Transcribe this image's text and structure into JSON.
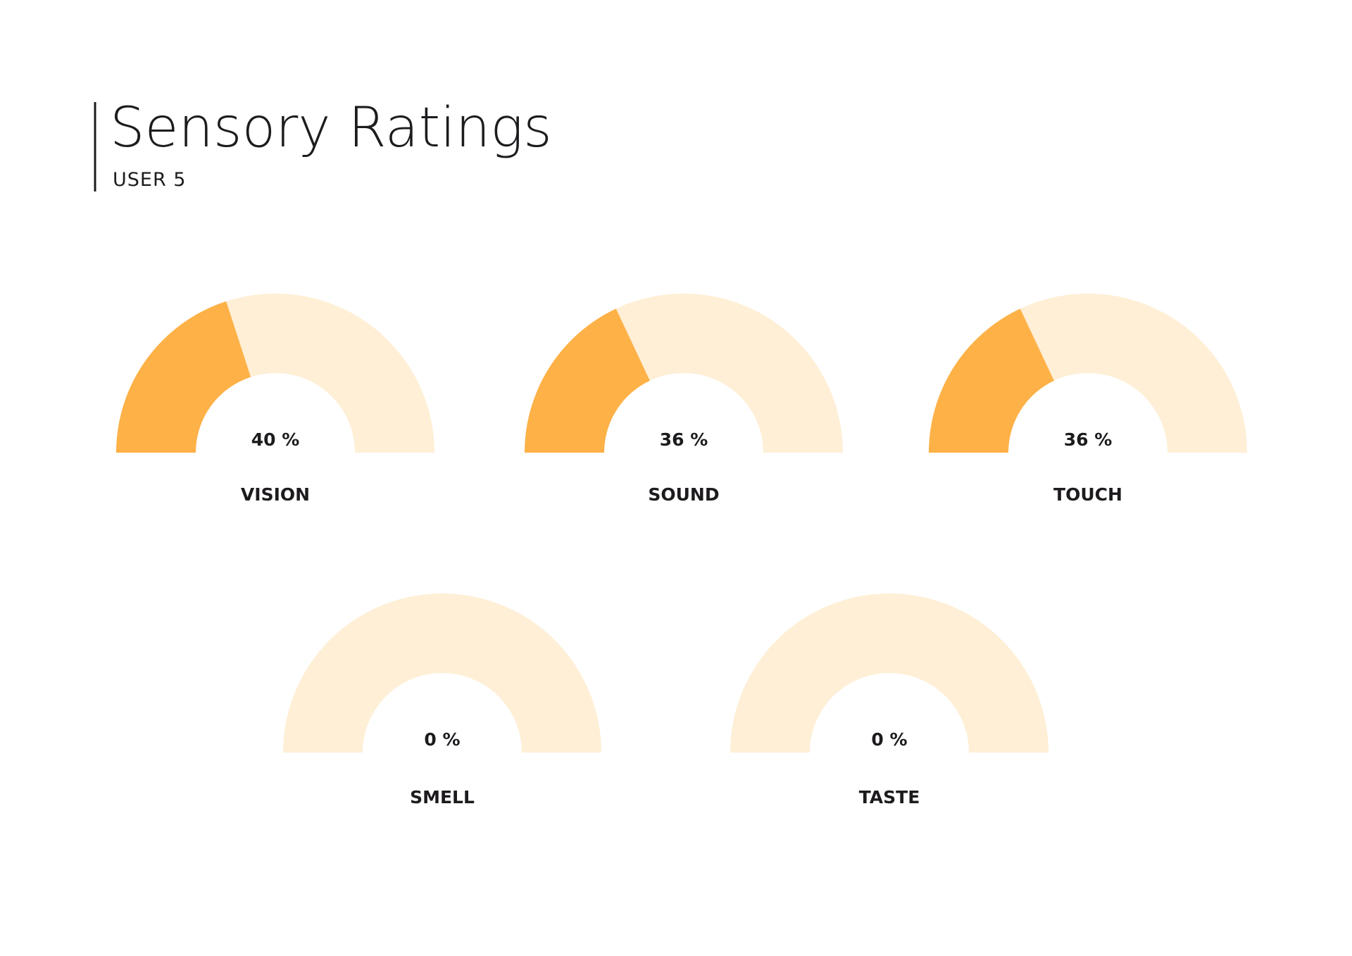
{
  "chart_data": {
    "type": "gauge",
    "title": "Sensory Ratings",
    "subtitle": "USER 5",
    "categories": [
      "VISION",
      "SOUND",
      "TOUCH",
      "SMELL",
      "TASTE"
    ],
    "values": [
      40,
      36,
      36,
      0,
      0
    ],
    "value_labels": [
      "40 %",
      "36 %",
      "36 %",
      "0 %",
      "0 %"
    ],
    "ylim": [
      0,
      100
    ],
    "color": "#fdb147",
    "track_color": "#feefd6"
  }
}
